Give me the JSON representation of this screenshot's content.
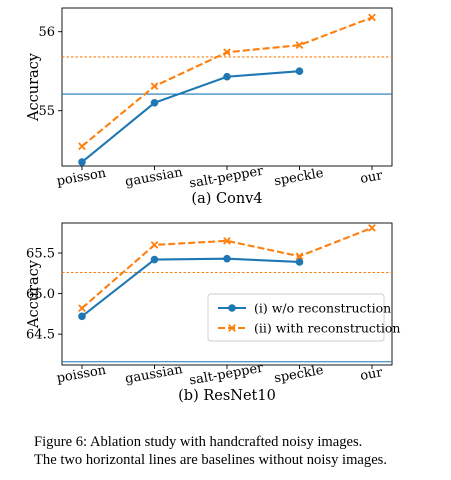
{
  "caption": {
    "line1": "Figure 6:  Ablation study with handcrafted noisy images.",
    "line2": "The two horizontal lines are baselines without noisy images."
  },
  "colors": {
    "series1": "#1f77b4",
    "series2": "#ff7f0e",
    "baseline1": "#1f77b4",
    "baseline2": "#ff7f0e"
  },
  "chart_data": [
    {
      "type": "line",
      "title": "(a) Conv4",
      "xlabel": "",
      "ylabel": "Accuracy",
      "categories": [
        "poisson",
        "gaussian",
        "salt-pepper",
        "speckle",
        "our"
      ],
      "yticks": [
        "55",
        "56"
      ],
      "ytick_values": [
        55,
        56
      ],
      "ylim": [
        54.3,
        56.3
      ],
      "series": [
        {
          "values": [
            54.35,
            55.1,
            55.43,
            55.5,
            null
          ],
          "marker": "circle",
          "linestyle": "solid",
          "color": "#1f77b4"
        },
        {
          "values": [
            54.55,
            55.31,
            55.74,
            55.83,
            56.18
          ],
          "marker": "x",
          "linestyle": "dashed",
          "color": "#ff7f0e"
        }
      ],
      "baselines": [
        {
          "value": 55.21,
          "color": "#1f77b4",
          "linestyle": "solid"
        },
        {
          "value": 55.68,
          "color": "#ff7f0e",
          "linestyle": "dotted"
        }
      ],
      "legend": null,
      "grid": false
    },
    {
      "type": "line",
      "title": "(b) ResNet10",
      "xlabel": "",
      "ylabel": "Accuracy",
      "categories": [
        "poisson",
        "gaussian",
        "salt-pepper",
        "speckle",
        "our"
      ],
      "yticks": [
        "64.5",
        "65.0",
        "65.5"
      ],
      "ytick_values": [
        64.5,
        65.0,
        65.5
      ],
      "ylim": [
        64.12,
        65.87
      ],
      "series": [
        {
          "name": "(i) w/o reconstruction",
          "values": [
            64.72,
            65.42,
            65.43,
            65.39,
            null
          ],
          "marker": "circle",
          "linestyle": "solid",
          "color": "#1f77b4"
        },
        {
          "name": "(ii) with reconstruction",
          "values": [
            64.82,
            65.6,
            65.65,
            65.46,
            65.81
          ],
          "marker": "x",
          "linestyle": "dashed",
          "color": "#ff7f0e"
        }
      ],
      "baselines": [
        {
          "value": 64.16,
          "color": "#1f77b4",
          "linestyle": "solid"
        },
        {
          "value": 65.26,
          "color": "#ff7f0e",
          "linestyle": "dotted"
        }
      ],
      "legend": "center-right",
      "grid": false
    }
  ]
}
